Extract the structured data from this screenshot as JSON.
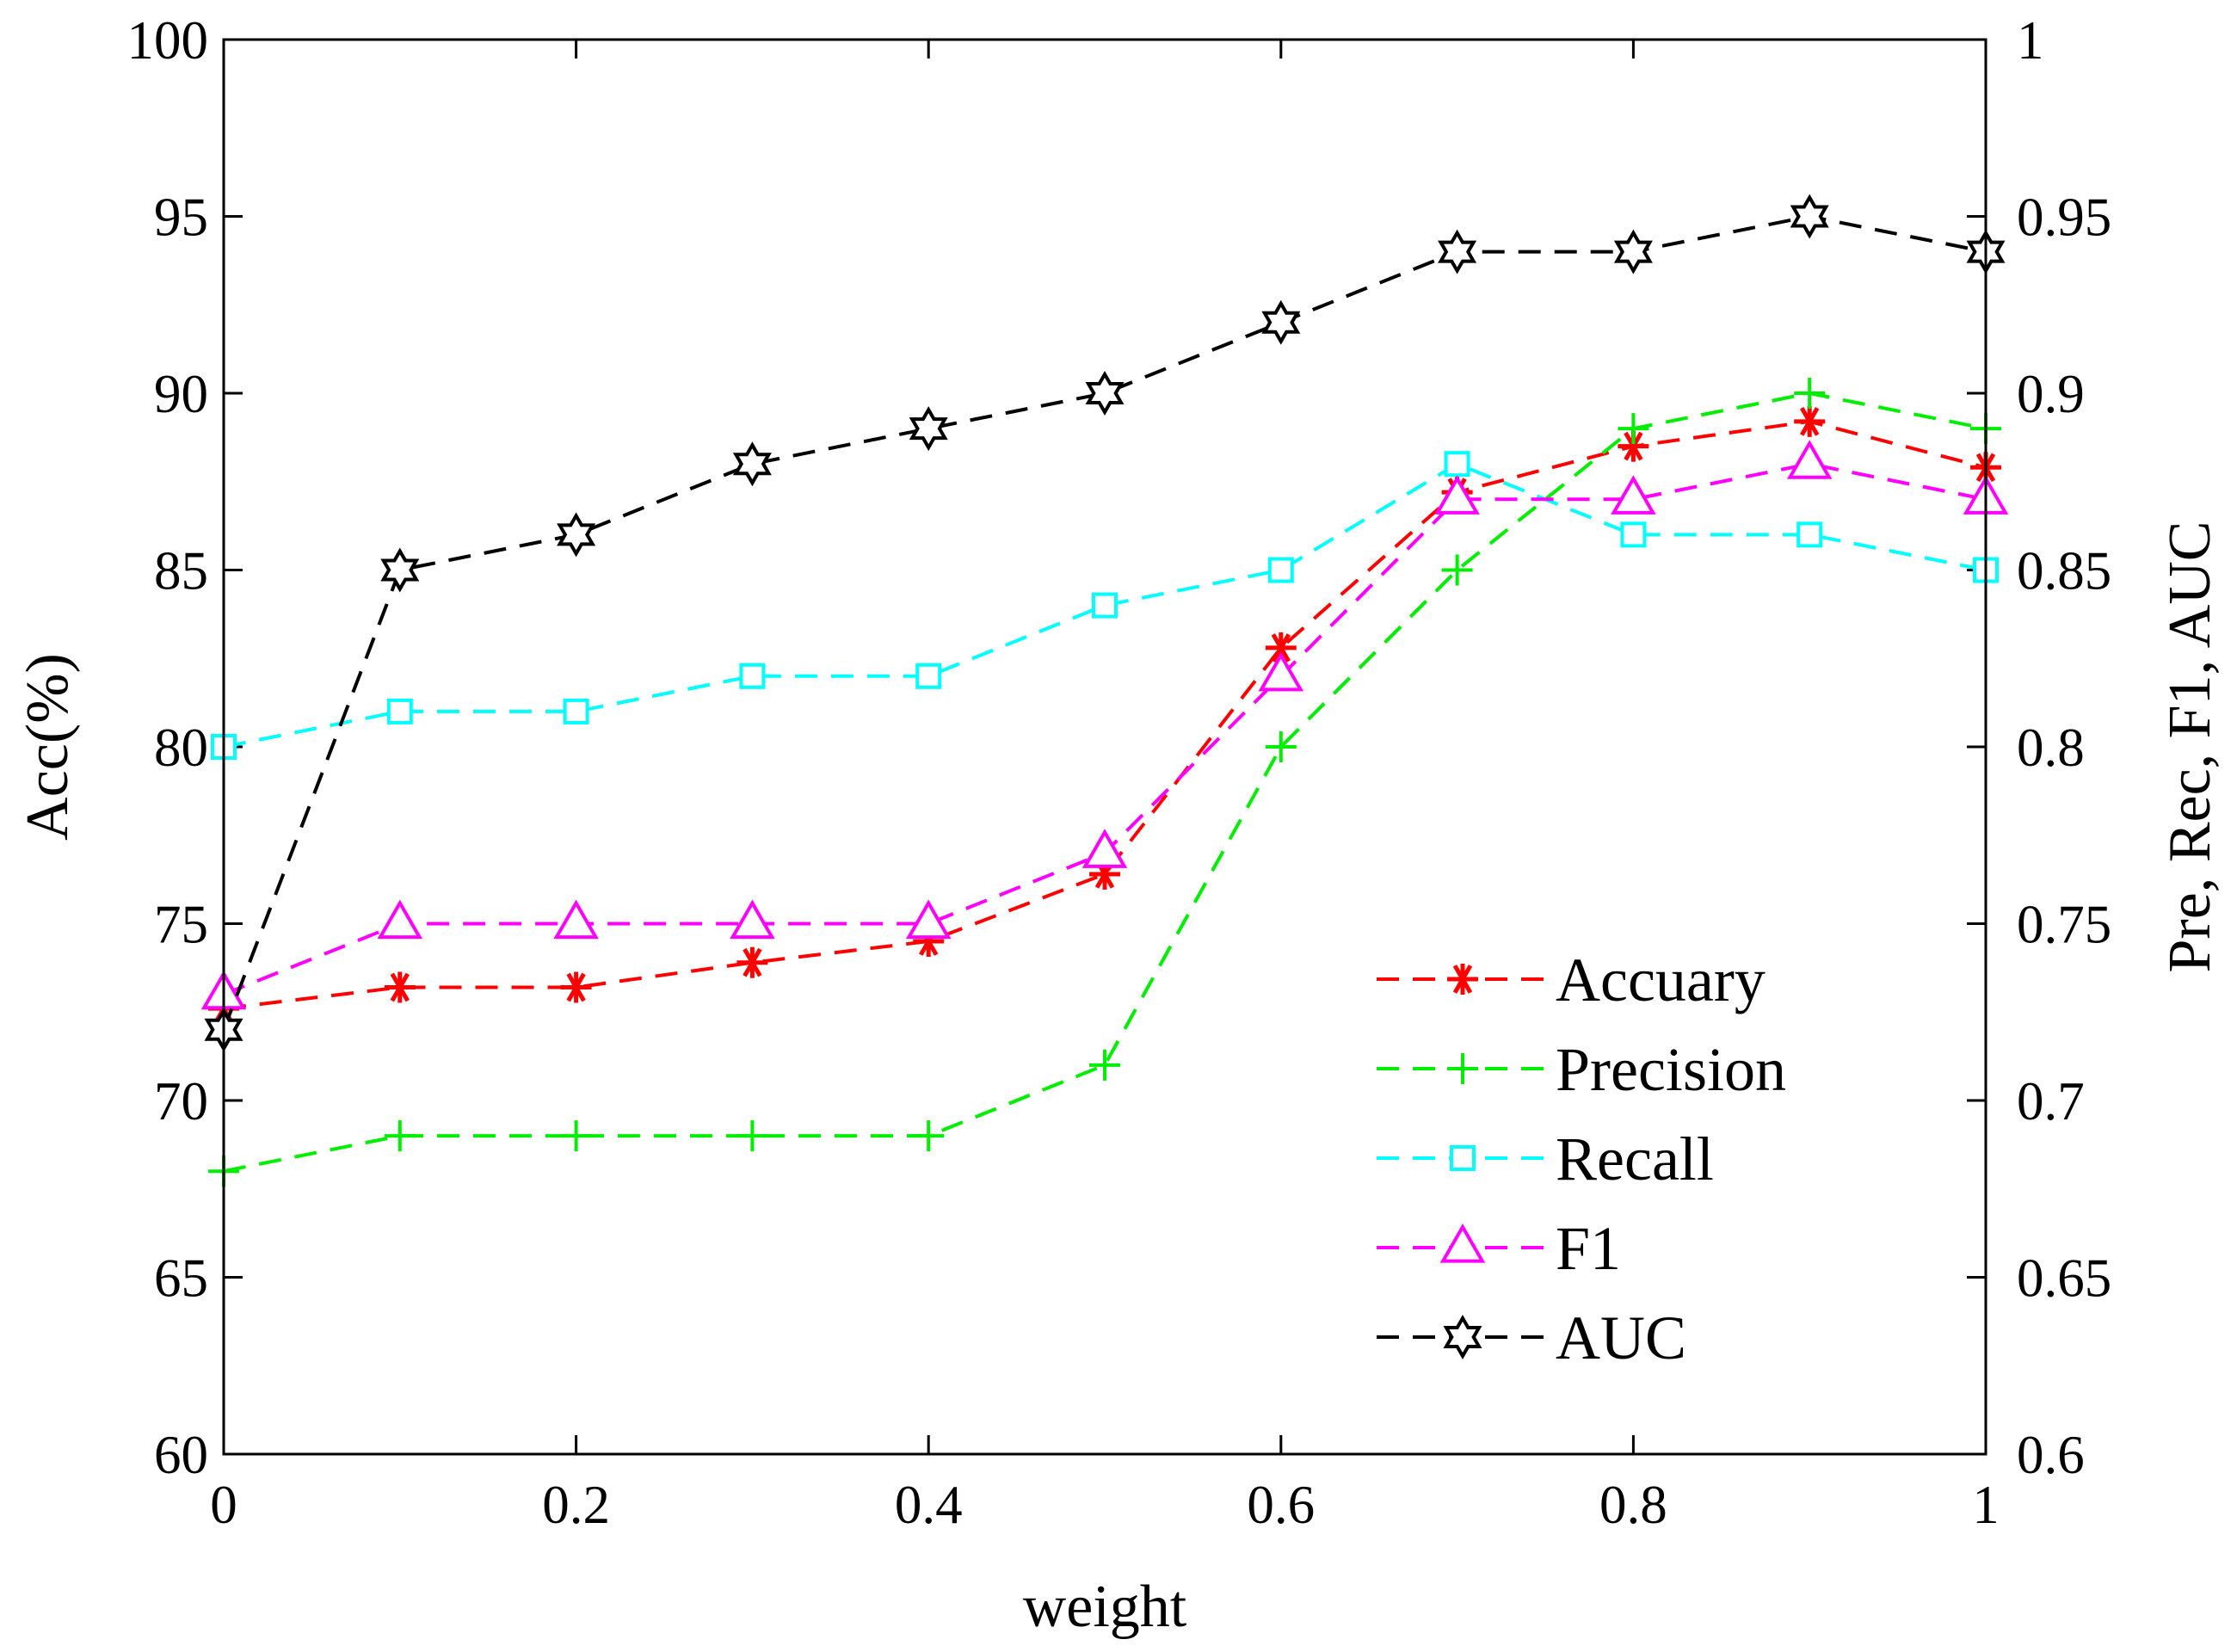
{
  "chart_data": {
    "type": "line",
    "title": "",
    "xlabel": "weight",
    "ylabel_left": "Acc(%)",
    "ylabel_right": "Pre, Rec, F1, AUC",
    "xlim": [
      0,
      1
    ],
    "ylim_left": [
      60,
      100
    ],
    "ylim_right": [
      0.6,
      1
    ],
    "x_ticks": [
      "0",
      "0.2",
      "0.4",
      "0.6",
      "0.8",
      "1"
    ],
    "y_left_ticks": [
      "60",
      "65",
      "70",
      "75",
      "80",
      "85",
      "90",
      "95",
      "100"
    ],
    "y_right_ticks": [
      "0.6",
      "0.65",
      "0.7",
      "0.75",
      "0.8",
      "0.85",
      "0.9",
      "0.95",
      "1"
    ],
    "legend_position": "bottom-right",
    "x": [
      0,
      0.1,
      0.2,
      0.3,
      0.4,
      0.5,
      0.6,
      0.7,
      0.8,
      0.9,
      1.0
    ],
    "series": [
      {
        "name": "Accuary",
        "axis": "left",
        "color": "#ff0000",
        "marker": "asterisk",
        "values": [
          72.6,
          73.2,
          73.2,
          73.9,
          74.5,
          76.4,
          82.8,
          87.2,
          88.5,
          89.2,
          87.9
        ]
      },
      {
        "name": "Precision",
        "axis": "right",
        "color": "#00ee00",
        "marker": "plus",
        "values": [
          0.68,
          0.69,
          0.69,
          0.69,
          0.69,
          0.71,
          0.8,
          0.85,
          0.89,
          0.9,
          0.89
        ]
      },
      {
        "name": "Recall",
        "axis": "right",
        "color": "#00ffff",
        "marker": "square",
        "values": [
          0.8,
          0.81,
          0.81,
          0.82,
          0.82,
          0.84,
          0.85,
          0.88,
          0.86,
          0.86,
          0.85
        ]
      },
      {
        "name": "F1",
        "axis": "right",
        "color": "#ff00ff",
        "marker": "triangle",
        "values": [
          0.73,
          0.75,
          0.75,
          0.75,
          0.75,
          0.77,
          0.82,
          0.87,
          0.87,
          0.88,
          0.87
        ]
      },
      {
        "name": "AUC",
        "axis": "right",
        "color": "#000000",
        "marker": "hexagram",
        "values": [
          0.72,
          0.85,
          0.86,
          0.88,
          0.89,
          0.9,
          0.92,
          0.94,
          0.94,
          0.95,
          0.94
        ]
      }
    ]
  }
}
